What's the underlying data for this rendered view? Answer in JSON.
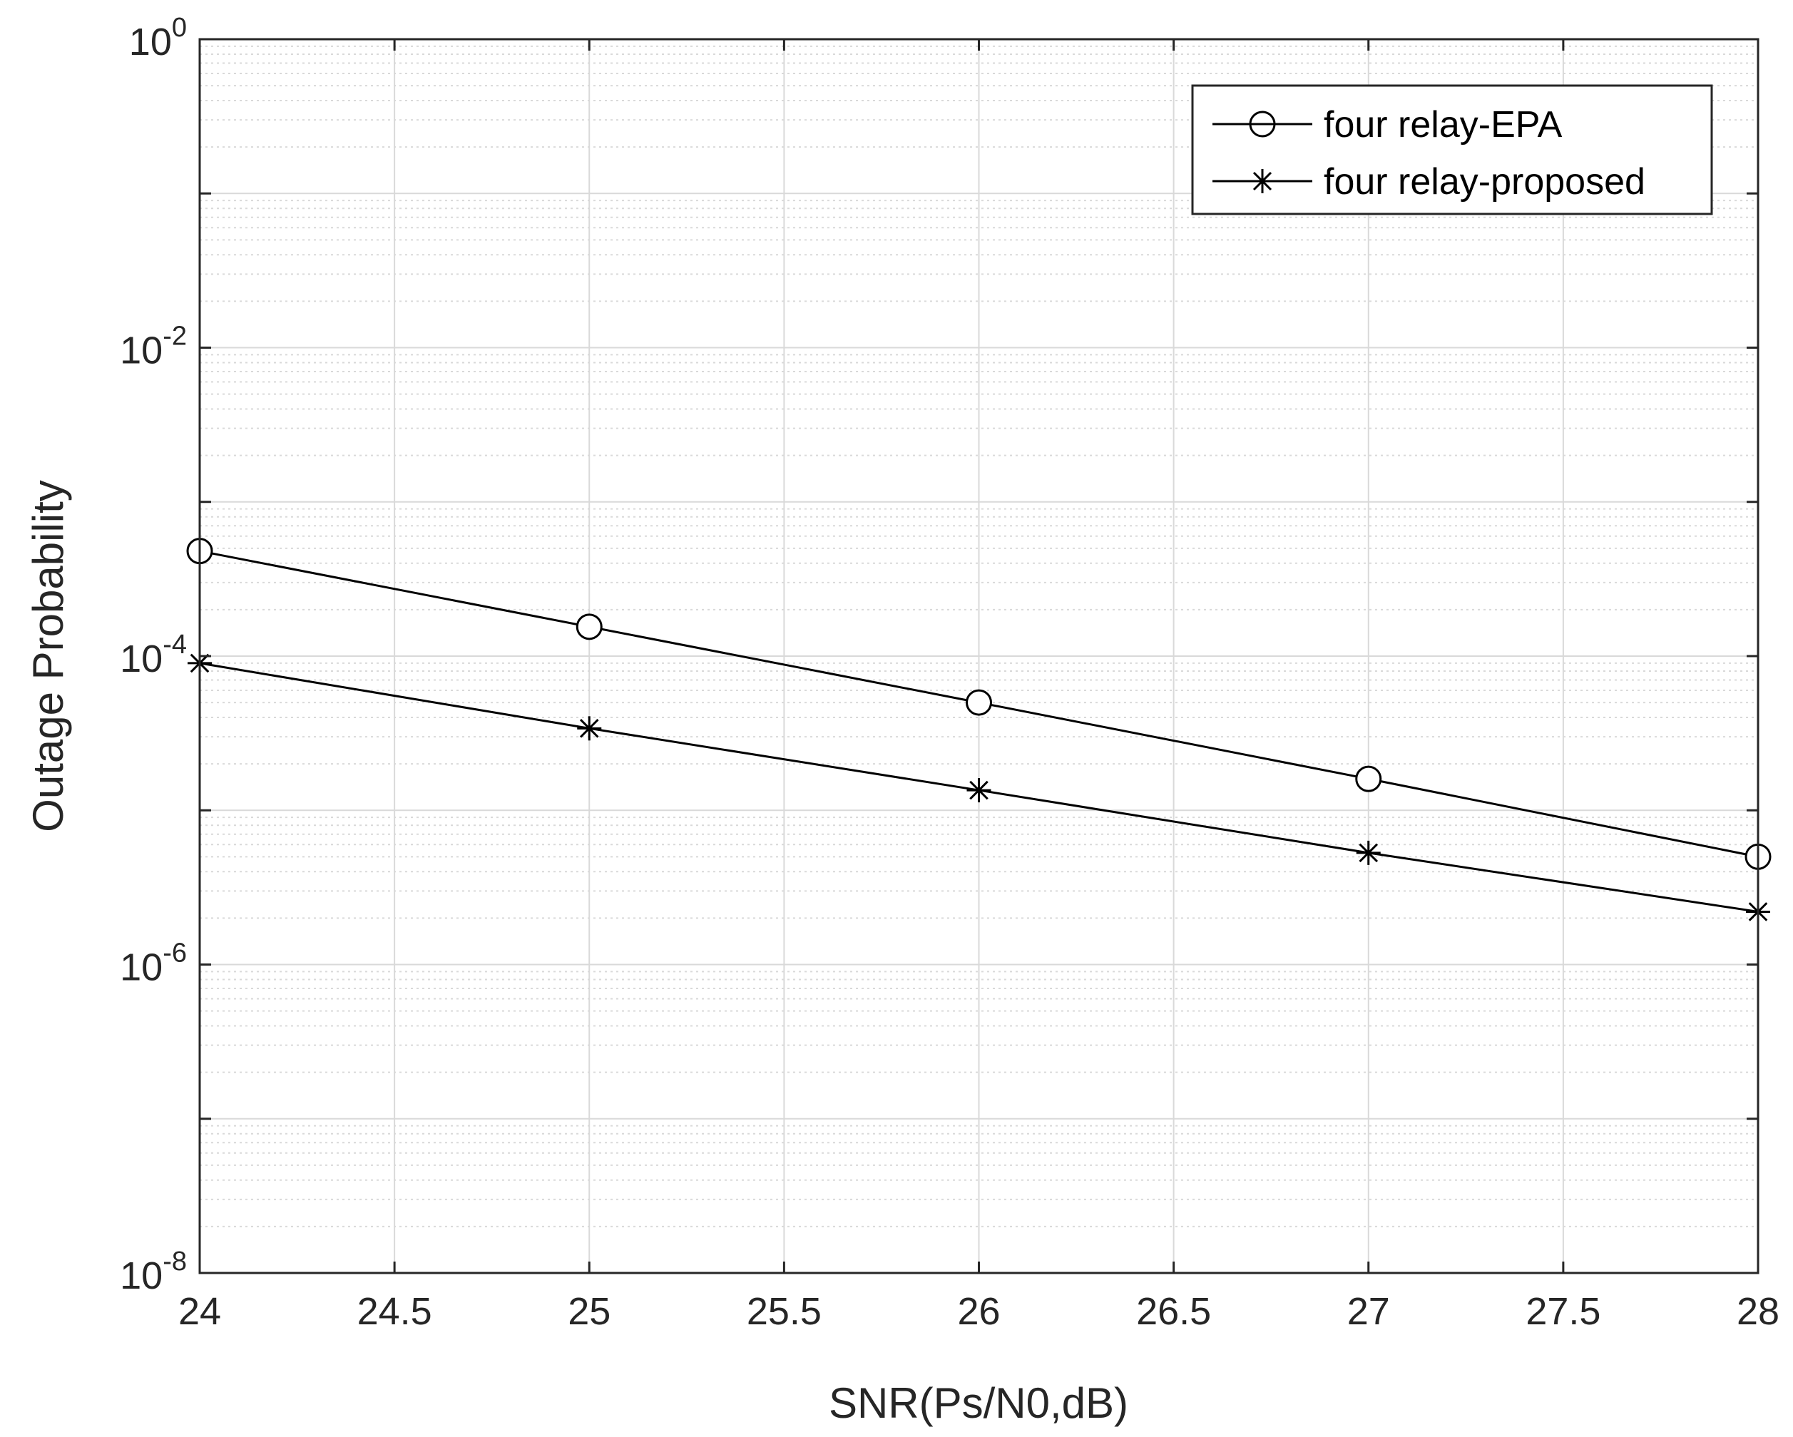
{
  "chart_data": {
    "type": "line",
    "title": "",
    "xlabel": "SNR(Ps/N0,dB)",
    "ylabel": "Outage Probability",
    "xlim": [
      24,
      28
    ],
    "ylim": [
      1e-08,
      1
    ],
    "yscale": "log",
    "xticks": [
      24,
      24.5,
      25,
      25.5,
      26,
      26.5,
      27,
      27.5,
      28
    ],
    "xtick_labels": [
      "24",
      "24.5",
      "25",
      "25.5",
      "26",
      "26.5",
      "27",
      "27.5",
      "28"
    ],
    "yticks": [
      1e-08,
      1e-06,
      0.0001,
      0.01,
      1
    ],
    "ytick_labels": [
      {
        "base": "10",
        "exp": "-8"
      },
      {
        "base": "10",
        "exp": "-6"
      },
      {
        "base": "10",
        "exp": "-4"
      },
      {
        "base": "10",
        "exp": "-2"
      },
      {
        "base": "10",
        "exp": "0"
      }
    ],
    "grid": true,
    "minor_grid": true,
    "legend_position": "top-right",
    "x": [
      24,
      25,
      26,
      27,
      28
    ],
    "series": [
      {
        "name": "four relay-EPA",
        "marker": "circle",
        "values": [
          0.00048,
          0.000155,
          5e-05,
          1.6e-05,
          5e-06
        ]
      },
      {
        "name": "four relay-proposed",
        "marker": "asterisk",
        "values": [
          9e-05,
          3.4e-05,
          1.35e-05,
          5.3e-06,
          2.2e-06
        ]
      }
    ],
    "colors": {
      "line": "#000000",
      "grid": "#d9d9d9",
      "axis": "#262626"
    }
  }
}
